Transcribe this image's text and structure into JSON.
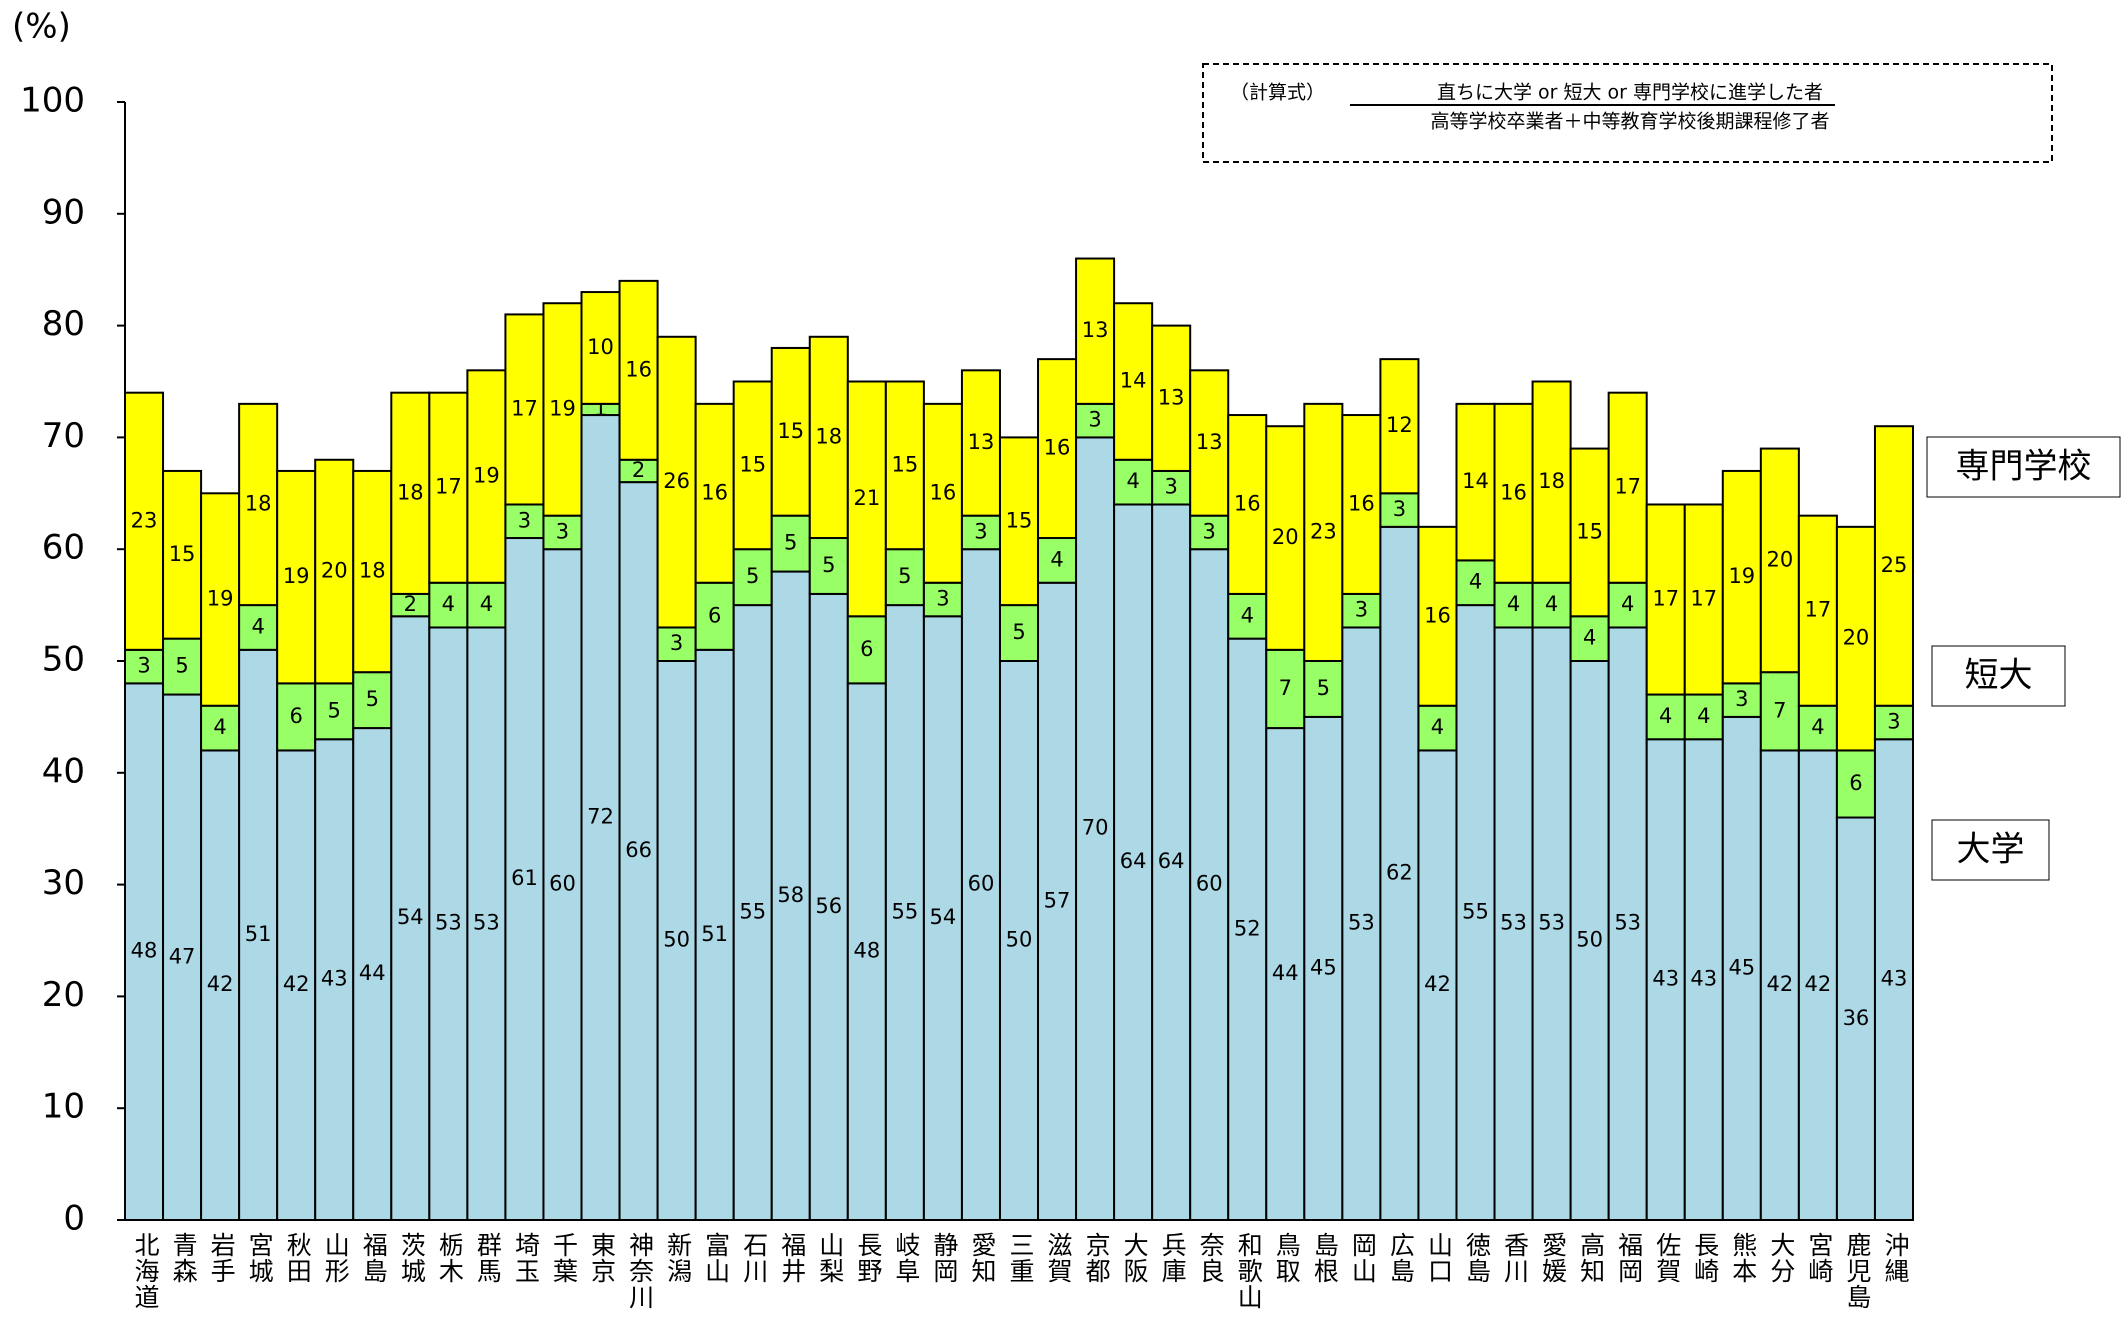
{
  "chart_data": {
    "type": "stacked_bar",
    "y_label": "(%)",
    "formula": {
      "label": "（計算式）",
      "numerator": "直ちに大学 or 短大 or 専門学校に進学した者",
      "denominator": "高等学校卒業者＋中等教育学校後期課程修了者"
    },
    "categories": [
      "北海道",
      "青森",
      "岩手",
      "宮城",
      "秋田",
      "山形",
      "福島",
      "茨城",
      "栃木",
      "群馬",
      "埼玉",
      "千葉",
      "東京",
      "神奈川",
      "新潟",
      "富山",
      "石川",
      "福井",
      "山梨",
      "長野",
      "岐阜",
      "静岡",
      "愛知",
      "三重",
      "滋賀",
      "京都",
      "大阪",
      "兵庫",
      "奈良",
      "和歌山",
      "鳥取",
      "島根",
      "岡山",
      "広島",
      "山口",
      "徳島",
      "香川",
      "愛媛",
      "高知",
      "福岡",
      "佐賀",
      "長崎",
      "熊本",
      "大分",
      "宮崎",
      "鹿児島",
      "沖縄"
    ],
    "series": [
      {
        "name": "大学",
        "color": "#add8e6",
        "values": [
          48,
          47,
          42,
          51,
          42,
          43,
          44,
          54,
          53,
          53,
          61,
          60,
          72,
          66,
          50,
          51,
          55,
          58,
          56,
          48,
          55,
          54,
          60,
          50,
          57,
          70,
          64,
          64,
          60,
          52,
          44,
          45,
          53,
          62,
          42,
          55,
          53,
          53,
          50,
          53,
          43,
          43,
          45,
          42,
          42,
          36,
          43
        ]
      },
      {
        "name": "短大",
        "color": "#99ff66",
        "values": [
          3,
          5,
          4,
          4,
          6,
          5,
          5,
          2,
          4,
          4,
          3,
          3,
          1,
          2,
          3,
          6,
          5,
          5,
          5,
          6,
          5,
          3,
          3,
          5,
          4,
          3,
          4,
          3,
          3,
          4,
          7,
          5,
          3,
          3,
          4,
          4,
          4,
          4,
          4,
          4,
          4,
          4,
          3,
          7,
          4,
          6,
          3
        ]
      },
      {
        "name": "専門学校",
        "color": "#ffff00",
        "values": [
          23,
          15,
          19,
          18,
          19,
          20,
          18,
          18,
          17,
          19,
          17,
          19,
          10,
          16,
          26,
          16,
          15,
          15,
          18,
          21,
          15,
          16,
          13,
          15,
          16,
          13,
          14,
          13,
          13,
          16,
          20,
          23,
          16,
          12,
          16,
          14,
          16,
          18,
          15,
          17,
          17,
          17,
          19,
          20,
          17,
          20,
          25
        ]
      }
    ],
    "ylim": [
      0,
      100
    ],
    "yticks": [
      0,
      10,
      20,
      30,
      40,
      50,
      60,
      70,
      80,
      90,
      100
    ]
  }
}
